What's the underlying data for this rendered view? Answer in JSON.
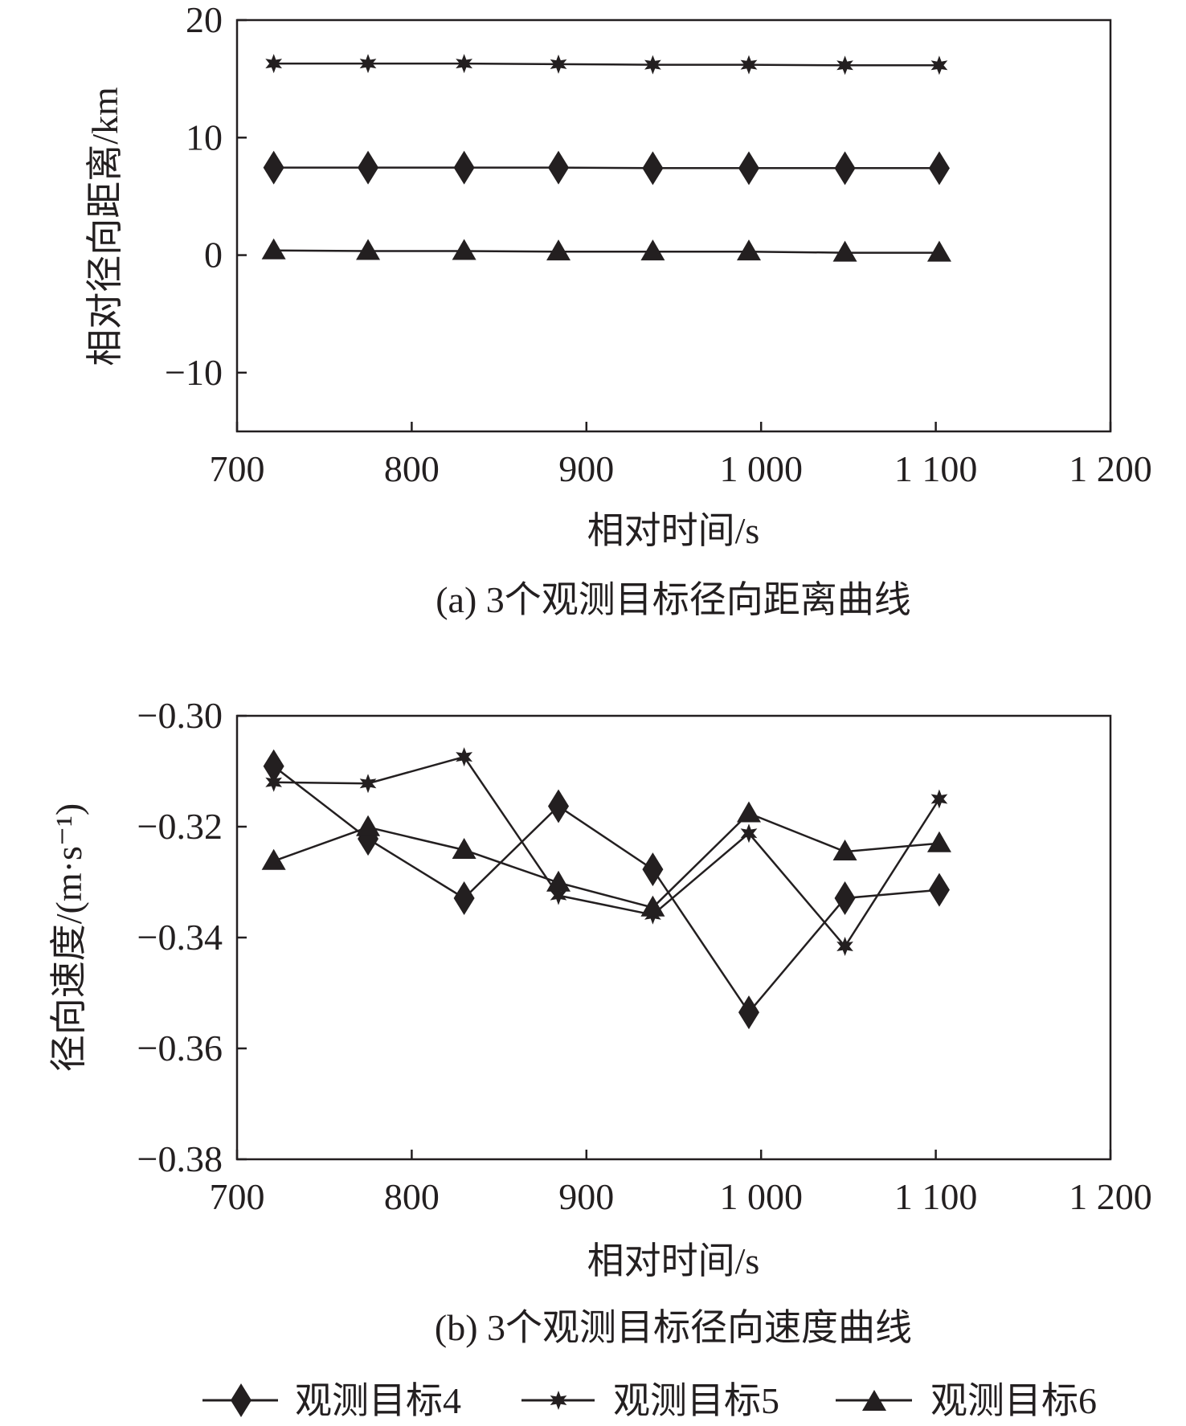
{
  "chart_data": [
    {
      "type": "line",
      "caption": "(a) 3个观测目标径向距离曲线",
      "xlabel": "相对时间/s",
      "ylabel": "相对径向距离/km",
      "xlim": [
        700,
        1200
      ],
      "ylim": [
        -15,
        20
      ],
      "xticks": [
        700,
        800,
        900,
        1000,
        1100,
        1200
      ],
      "xtick_labels": [
        "700",
        "800",
        "900",
        "1 000",
        "1 100",
        "1 200"
      ],
      "yticks": [
        -10,
        0,
        10,
        20
      ],
      "ytick_labels": [
        "−10",
        "0",
        "10",
        "20"
      ],
      "grid": false,
      "x": [
        721,
        775,
        830,
        884,
        938,
        993,
        1048,
        1102
      ],
      "series": [
        {
          "name": "观测目标4",
          "marker": "diamond",
          "values": [
            7.45,
            7.45,
            7.45,
            7.45,
            7.4,
            7.4,
            7.4,
            7.4
          ]
        },
        {
          "name": "观测目标5",
          "marker": "star",
          "values": [
            16.3,
            16.3,
            16.3,
            16.25,
            16.2,
            16.2,
            16.15,
            16.15
          ]
        },
        {
          "name": "观测目标6",
          "marker": "triangle",
          "values": [
            0.4,
            0.35,
            0.35,
            0.3,
            0.3,
            0.3,
            0.2,
            0.2
          ]
        }
      ]
    },
    {
      "type": "line",
      "caption": "(b) 3个观测目标径向速度曲线",
      "xlabel": "相对时间/s",
      "ylabel": "径向速度/(m·s⁻¹)",
      "xlim": [
        700,
        1200
      ],
      "ylim": [
        -0.38,
        -0.3
      ],
      "xticks": [
        700,
        800,
        900,
        1000,
        1100,
        1200
      ],
      "xtick_labels": [
        "700",
        "800",
        "900",
        "1 000",
        "1 100",
        "1 200"
      ],
      "yticks": [
        -0.38,
        -0.36,
        -0.34,
        -0.32,
        -0.3
      ],
      "ytick_labels": [
        "−0.38",
        "−0.36",
        "−0.34",
        "−0.32",
        "−0.30"
      ],
      "grid": false,
      "x": [
        721,
        775,
        830,
        884,
        938,
        993,
        1048,
        1102
      ],
      "series": [
        {
          "name": "观测目标4",
          "marker": "diamond",
          "values": [
            -0.3091,
            -0.3222,
            -0.3329,
            -0.3163,
            -0.3277,
            -0.3535,
            -0.3329,
            -0.3314
          ]
        },
        {
          "name": "观测目标5",
          "marker": "star",
          "values": [
            -0.312,
            -0.3122,
            -0.3074,
            -0.3324,
            -0.3359,
            -0.3212,
            -0.3416,
            -0.315
          ]
        },
        {
          "name": "观测目标6",
          "marker": "triangle",
          "values": [
            -0.3262,
            -0.3201,
            -0.3242,
            -0.3301,
            -0.3346,
            -0.3176,
            -0.3245,
            -0.323
          ]
        }
      ]
    }
  ],
  "legend": {
    "placement": "bottom",
    "items": [
      "观测目标4",
      "观测目标5",
      "观测目标6"
    ]
  },
  "colors": {
    "ink": "#231f20"
  }
}
